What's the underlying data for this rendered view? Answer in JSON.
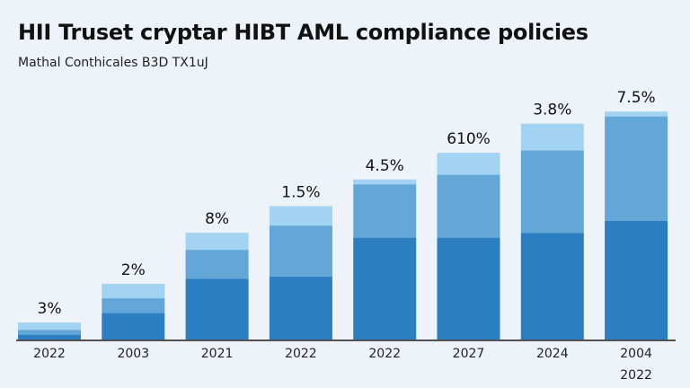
{
  "title": "HII Truset cryptar HIBT AML compliance policies",
  "subtitle": "Mathal Conthicales B3D TX1uJ",
  "chart_data": {
    "type": "bar",
    "stacked": true,
    "title": "HII Truset cryptar HIBT AML compliance policies",
    "subtitle": "Mathal Conthicales B3D TX1uJ",
    "categories": [
      "2022",
      "2003",
      "2021",
      "2022",
      "2022",
      "2027",
      "2024",
      "2004"
    ],
    "extra_labels": [
      "",
      "",
      "",
      "",
      "",
      "",
      "",
      "2022"
    ],
    "data_labels": [
      "3%",
      "2%",
      "8%",
      "1.5%",
      "4.5%",
      "610%",
      "3.8%",
      "7.5%"
    ],
    "ylim": [
      0,
      100
    ],
    "series": [
      {
        "name": "base",
        "color": "#2b7fc0",
        "values": [
          2,
          11,
          25,
          26,
          42,
          42,
          44,
          49
        ]
      },
      {
        "name": "middle",
        "color": "#62a7d7",
        "values": [
          2,
          6,
          12,
          21,
          22,
          26,
          34,
          43
        ]
      },
      {
        "name": "top",
        "color": "#a3d3f2",
        "values": [
          3,
          6,
          7,
          8,
          2,
          9,
          11,
          2
        ]
      }
    ]
  }
}
